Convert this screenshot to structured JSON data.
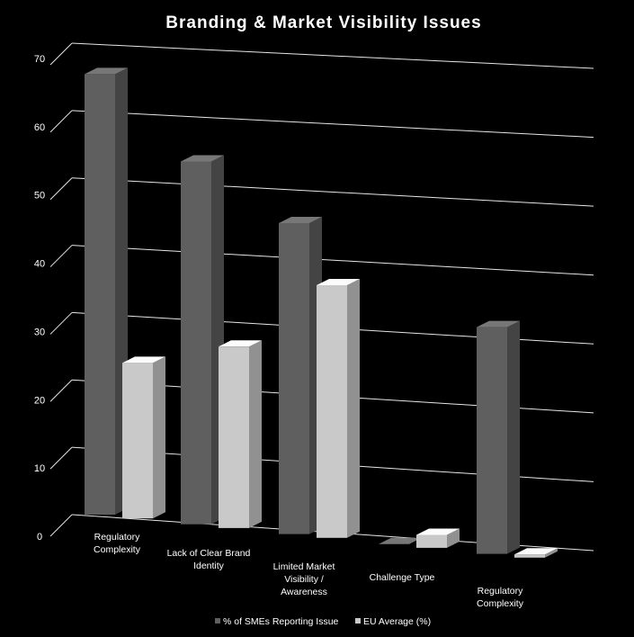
{
  "chart_data": {
    "type": "bar",
    "title": "Branding & Market Visibility Issues",
    "categories": [
      [
        "Regulatory",
        "Complexity"
      ],
      [
        "Lack of Clear Brand",
        "Identity"
      ],
      [
        "Limited Market",
        "Visibility /",
        "Awareness"
      ],
      [
        "Challenge Type"
      ],
      [
        "Regulatory",
        "Complexity"
      ]
    ],
    "series": [
      {
        "name": "% of SMEs Reporting Issue",
        "values": [
          68,
          56,
          48,
          0,
          35
        ],
        "color": "#5f5f5f"
      },
      {
        "name": "EU Average (%)",
        "values": [
          24,
          28,
          39,
          2,
          0.5
        ],
        "color": "#c9c9c9"
      }
    ],
    "y_ticks": [
      "0",
      "10",
      "20",
      "30",
      "40",
      "50",
      "60",
      "70"
    ],
    "ylim": [
      0,
      70
    ],
    "grid": true,
    "legend_position": "bottom",
    "style": "3d-perspective"
  }
}
